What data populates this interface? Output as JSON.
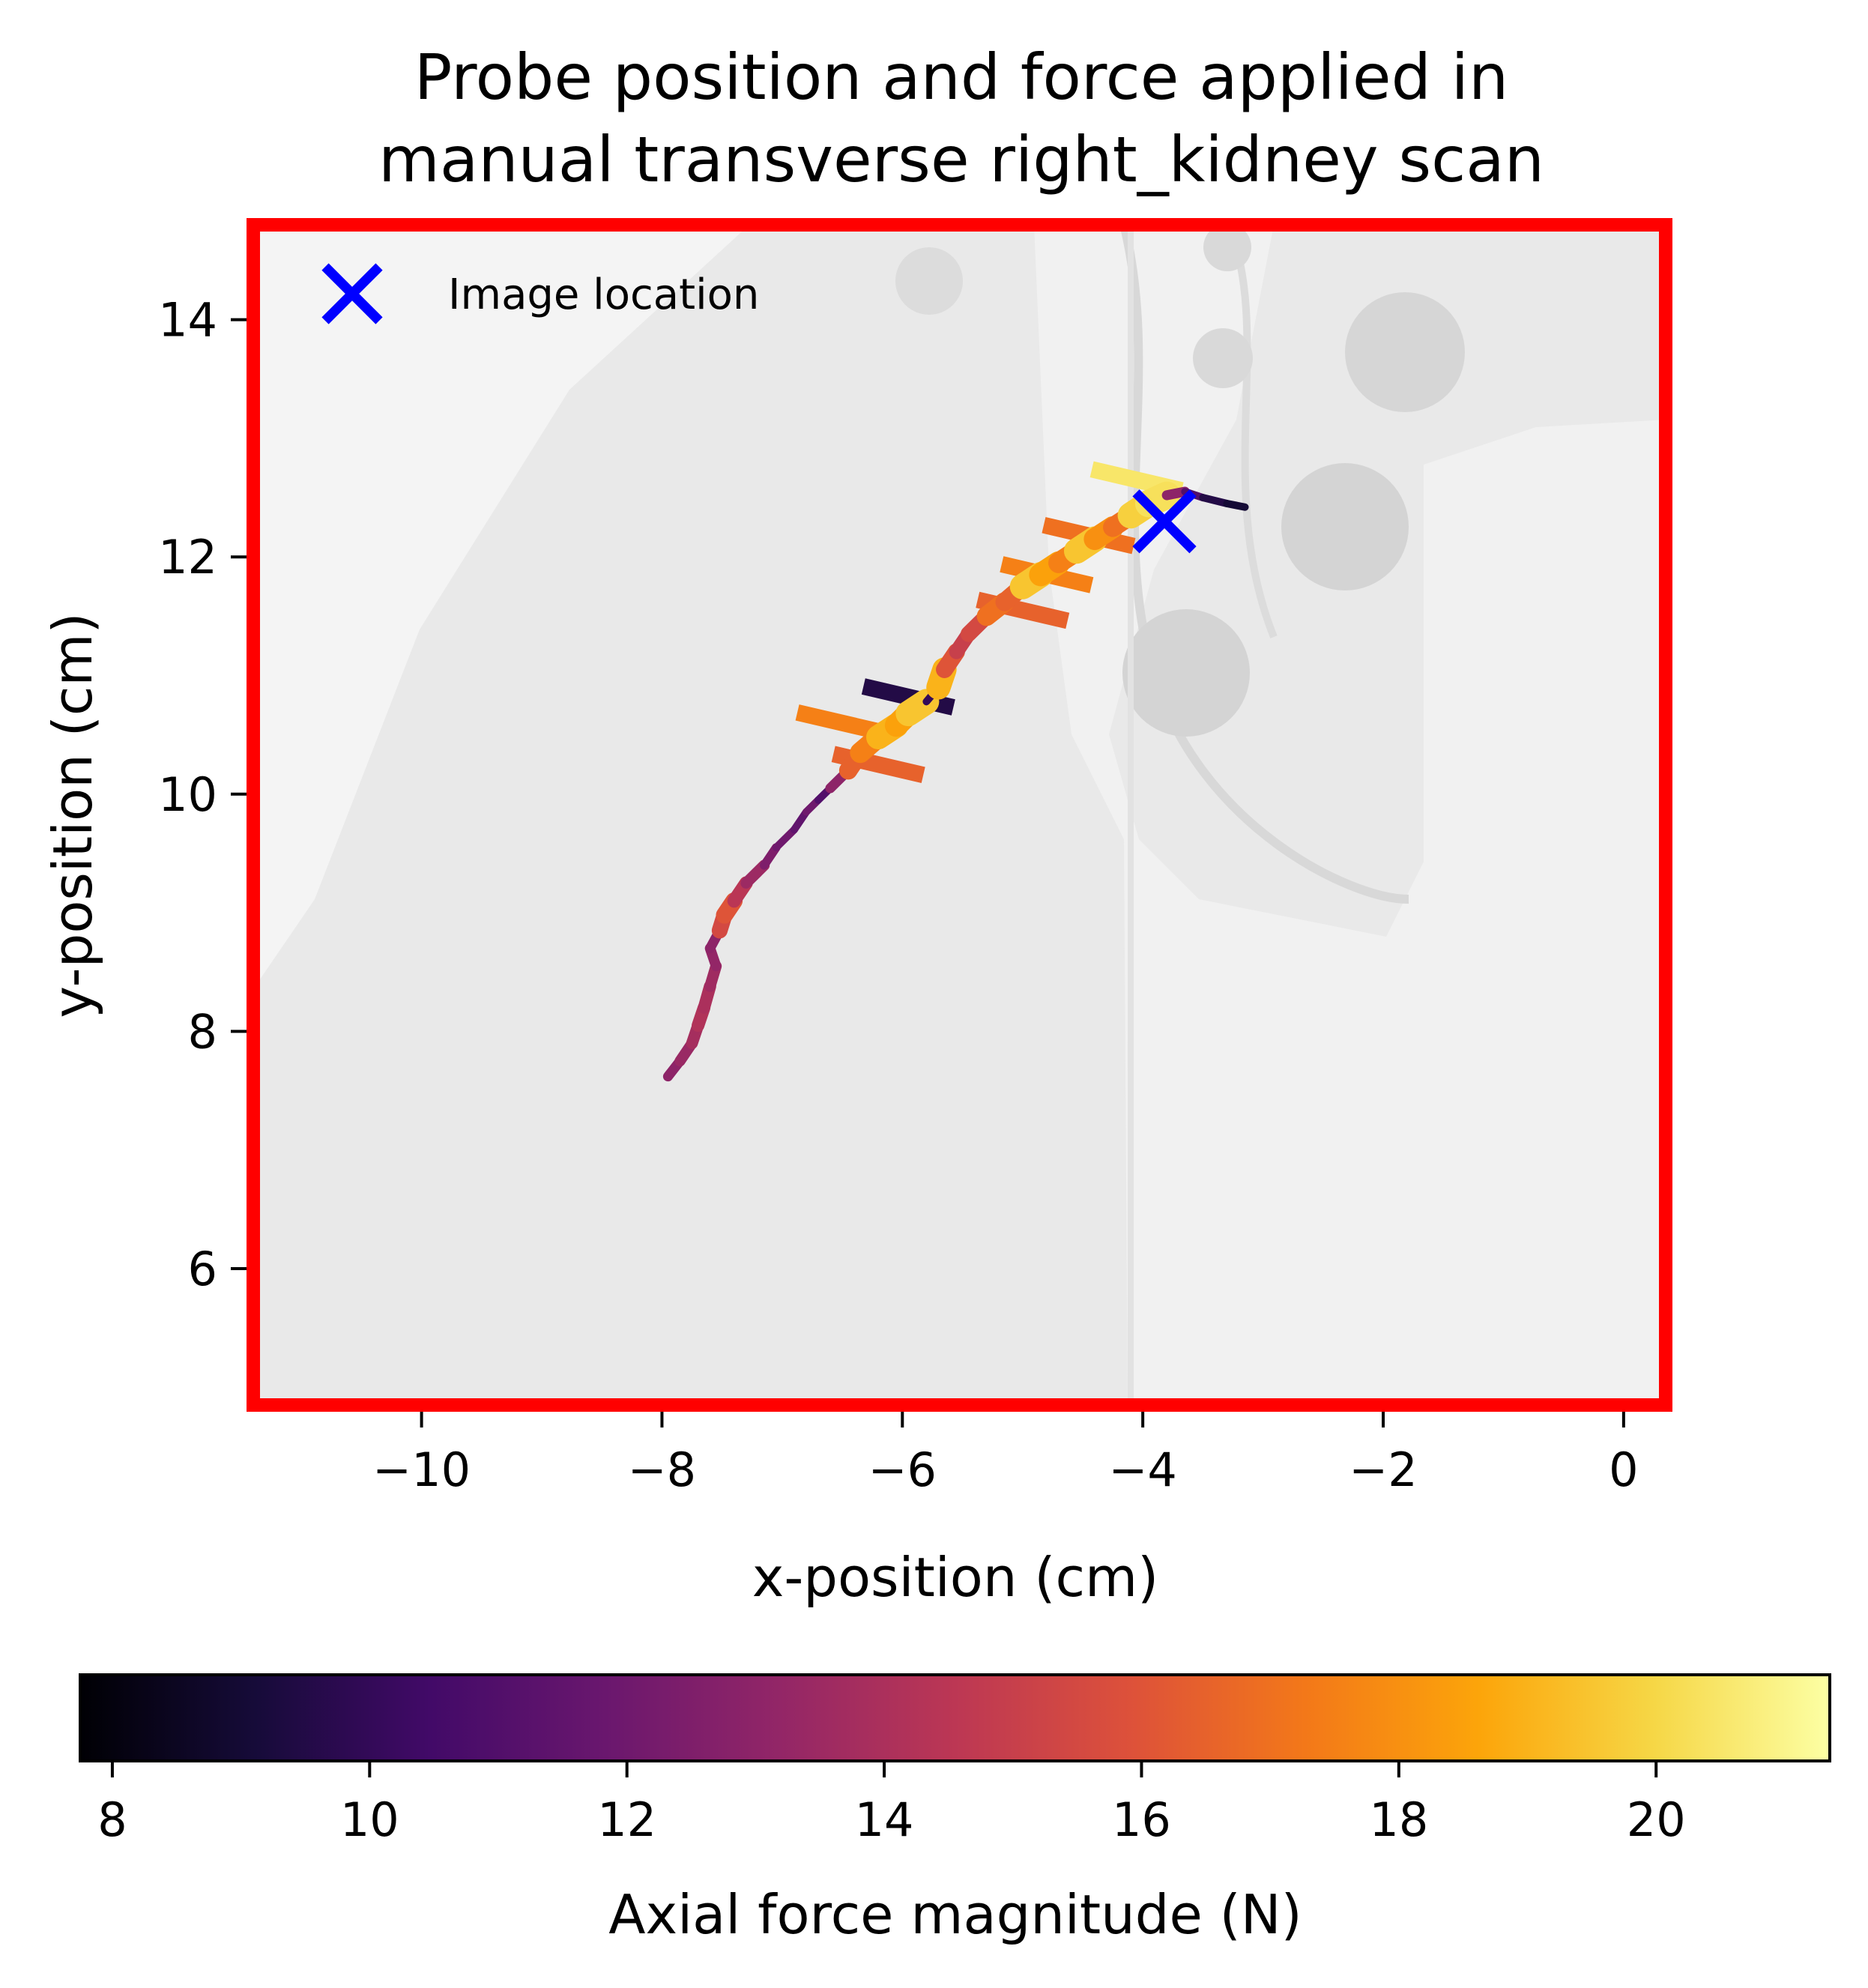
{
  "chart_data": {
    "type": "line",
    "title_line1": "Probe position and force applied in",
    "title_line2": "manual transverse right_kidney scan",
    "xlabel": "x-position (cm)",
    "ylabel": "y-position (cm)",
    "xlim": [
      -11.4,
      0.35
    ],
    "ylim": [
      4.85,
      14.8
    ],
    "x_ticks": [
      -10,
      -8,
      -6,
      -4,
      -2,
      0
    ],
    "x_tick_labels": [
      "−10",
      "−8",
      "−6",
      "−4",
      "−2",
      "0"
    ],
    "y_ticks": [
      6,
      8,
      10,
      12,
      14
    ],
    "y_tick_labels": [
      "6",
      "8",
      "10",
      "12",
      "14"
    ],
    "grid": false,
    "legend": {
      "position": "top-left",
      "entries": [
        {
          "label": "Image location",
          "marker": "x",
          "color": "#0000ff"
        }
      ]
    },
    "image_location": {
      "x": -3.82,
      "y": 12.3
    },
    "frame_color": "#ff0000",
    "colorbar": {
      "label": "Axial force magnitude (N)",
      "colormap": "inferno",
      "range": [
        7.75,
        21.35
      ],
      "ticks": [
        8,
        10,
        12,
        14,
        16,
        18,
        20
      ],
      "tick_labels": [
        "8",
        "10",
        "12",
        "14",
        "16",
        "18",
        "20"
      ],
      "orientation": "horizontal"
    },
    "trajectory": {
      "x": [
        -7.95,
        -7.85,
        -7.75,
        -7.7,
        -7.65,
        -7.6,
        -7.55,
        -7.6,
        -7.52,
        -7.48,
        -7.4,
        -7.3,
        -7.15,
        -7.05,
        -6.9,
        -6.8,
        -6.7,
        -6.6,
        -6.45,
        -6.35,
        -6.2,
        -6.05,
        -5.95,
        -5.8,
        -5.7,
        -5.65,
        -5.55,
        -5.45,
        -5.3,
        -5.15,
        -5.0,
        -4.85,
        -4.7,
        -4.55,
        -4.4,
        -4.25,
        -4.1,
        -3.95,
        -3.8,
        -3.65,
        -3.5,
        -3.3,
        -3.15
      ],
      "y": [
        7.62,
        7.75,
        7.9,
        8.05,
        8.2,
        8.38,
        8.55,
        8.7,
        8.85,
        8.98,
        9.1,
        9.25,
        9.4,
        9.55,
        9.7,
        9.85,
        9.95,
        10.05,
        10.2,
        10.35,
        10.48,
        10.58,
        10.68,
        10.78,
        10.9,
        11.05,
        11.2,
        11.35,
        11.5,
        11.62,
        11.75,
        11.85,
        11.95,
        12.05,
        12.15,
        12.25,
        12.35,
        12.45,
        12.52,
        12.55,
        12.5,
        12.45,
        12.42
      ],
      "force": [
        13.0,
        13.4,
        13.8,
        14.2,
        14.0,
        13.6,
        13.2,
        13.0,
        15.5,
        16.0,
        14.5,
        13.5,
        12.5,
        12.0,
        11.5,
        12.0,
        11.0,
        13.0,
        16.5,
        17.5,
        19.0,
        18.5,
        19.5,
        10.0,
        19.0,
        16.0,
        15.0,
        15.5,
        17.0,
        16.5,
        19.5,
        18.5,
        17.5,
        19.5,
        18.0,
        17.0,
        19.8,
        20.3,
        13.0,
        11.0,
        9.5,
        9.0,
        10.0
      ]
    },
    "force_bars": [
      {
        "x": -6.5,
        "y": 10.6,
        "force": 17.5
      },
      {
        "x": -6.2,
        "y": 10.25,
        "force": 16.5
      },
      {
        "x": -5.0,
        "y": 11.55,
        "force": 16.5
      },
      {
        "x": -4.8,
        "y": 11.85,
        "force": 17.5
      },
      {
        "x": -4.45,
        "y": 12.18,
        "force": 17.0
      },
      {
        "x": -4.05,
        "y": 12.65,
        "force": 20.5
      },
      {
        "x": -5.95,
        "y": 10.82,
        "force": 9.5
      }
    ]
  }
}
